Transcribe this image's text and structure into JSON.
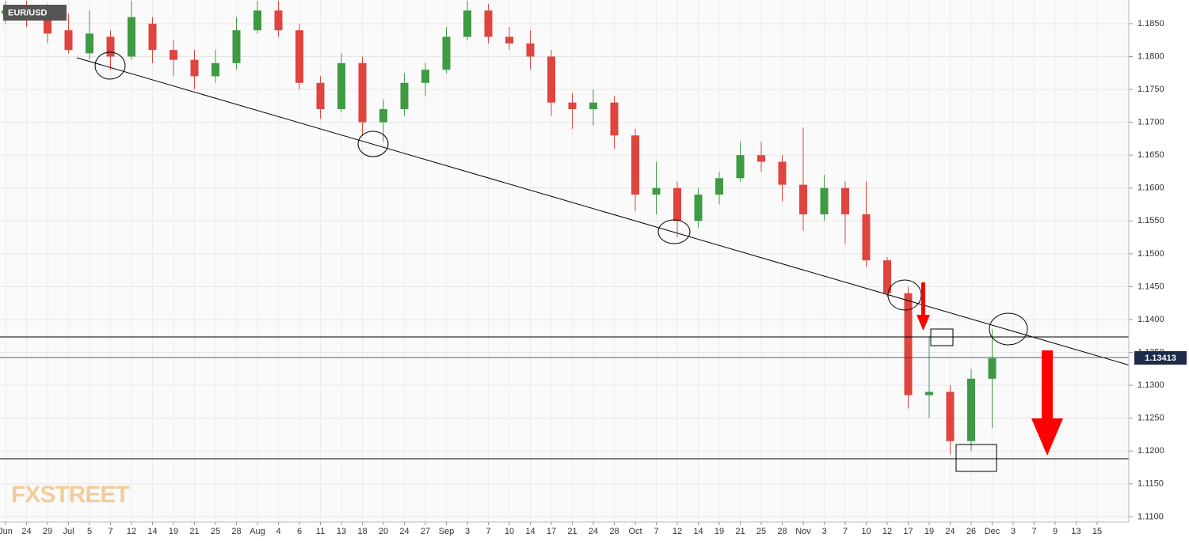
{
  "chart_data": {
    "type": "candlestick",
    "title": "EUR/USD",
    "watermark": "FXSTREET",
    "last_price_label": "1.13413",
    "categories": [
      "Jun",
      "24",
      "29",
      "Jul",
      "5",
      "7",
      "12",
      "14",
      "19",
      "21",
      "25",
      "28",
      "Aug",
      "4",
      "6",
      "11",
      "13",
      "18",
      "20",
      "24",
      "27",
      "Sep",
      "3",
      "7",
      "10",
      "14",
      "17",
      "21",
      "24",
      "28",
      "Oct",
      "7",
      "12",
      "14",
      "19",
      "21",
      "25",
      "28",
      "Nov",
      "3",
      "7",
      "10",
      "12",
      "17",
      "19",
      "24",
      "26",
      "Dec",
      "3",
      "7",
      "9",
      "13",
      "15"
    ],
    "series": [
      {
        "up_color": "#3f9a44",
        "down_color": "#e0443e",
        "open": [
          1.1865,
          1.187,
          1.1862,
          1.184,
          1.1805,
          1.183,
          1.18,
          1.185,
          1.181,
          1.1795,
          1.177,
          1.179,
          1.184,
          1.187,
          1.184,
          1.176,
          1.172,
          1.179,
          1.17,
          1.172,
          1.176,
          1.178,
          1.183,
          1.187,
          1.183,
          1.182,
          1.18,
          1.173,
          1.172,
          1.173,
          1.168,
          1.159,
          1.16,
          1.155,
          1.159,
          1.1615,
          1.165,
          1.164,
          1.1605,
          1.156,
          1.16,
          1.156,
          1.149,
          1.144,
          1.1285,
          1.129,
          1.1215,
          1.131,
          null,
          null,
          null,
          null,
          null
        ],
        "high": [
          1.1885,
          1.1885,
          1.188,
          1.1865,
          1.187,
          1.184,
          1.1885,
          1.186,
          1.1825,
          1.181,
          1.181,
          1.186,
          1.1885,
          1.1885,
          1.185,
          1.177,
          1.1805,
          1.18,
          1.1735,
          1.1775,
          1.179,
          1.1845,
          1.1885,
          1.188,
          1.1845,
          1.184,
          1.181,
          1.1745,
          1.175,
          1.174,
          1.169,
          1.164,
          1.161,
          1.16,
          1.1625,
          1.167,
          1.167,
          1.165,
          1.1692,
          1.162,
          1.161,
          1.161,
          1.1495,
          1.145,
          1.1375,
          1.13,
          1.1325,
          1.1385,
          null,
          null,
          null,
          null,
          null
        ],
        "low": [
          1.185,
          1.1845,
          1.182,
          1.1805,
          1.1795,
          1.178,
          1.1795,
          1.179,
          1.177,
          1.175,
          1.176,
          1.178,
          1.1835,
          1.183,
          1.175,
          1.1705,
          1.1715,
          1.168,
          1.167,
          1.171,
          1.174,
          1.1775,
          1.1825,
          1.182,
          1.181,
          1.178,
          1.171,
          1.169,
          1.1695,
          1.166,
          1.1565,
          1.156,
          1.1525,
          1.154,
          1.1575,
          1.161,
          1.1625,
          1.158,
          1.1535,
          1.155,
          1.1515,
          1.148,
          1.1435,
          1.1265,
          1.125,
          1.1195,
          1.12,
          1.1235,
          null,
          null,
          null,
          null,
          null
        ],
        "close": [
          1.187,
          1.186,
          1.1835,
          1.181,
          1.1835,
          1.18,
          1.186,
          1.181,
          1.1795,
          1.177,
          1.179,
          1.184,
          1.187,
          1.184,
          1.176,
          1.172,
          1.179,
          1.17,
          1.172,
          1.176,
          1.178,
          1.183,
          1.187,
          1.183,
          1.182,
          1.18,
          1.173,
          1.172,
          1.173,
          1.168,
          1.159,
          1.16,
          1.155,
          1.159,
          1.1615,
          1.165,
          1.164,
          1.1605,
          1.156,
          1.16,
          1.156,
          1.149,
          1.144,
          1.1285,
          1.129,
          1.1215,
          1.131,
          1.1341,
          null,
          null,
          null,
          null,
          null
        ]
      }
    ],
    "ylim": [
      1.1092,
      1.1886
    ],
    "yticks": [
      {
        "value": 1.11,
        "label": "1.1100"
      },
      {
        "value": 1.115,
        "label": "1.1150"
      },
      {
        "value": 1.12,
        "label": "1.1200"
      },
      {
        "value": 1.125,
        "label": "1.1250"
      },
      {
        "value": 1.13,
        "label": "1.1300"
      },
      {
        "value": 1.135,
        "label": "1.1350"
      },
      {
        "value": 1.14,
        "label": "1.1400"
      },
      {
        "value": 1.145,
        "label": "1.1450"
      },
      {
        "value": 1.15,
        "label": "1.1500"
      },
      {
        "value": 1.155,
        "label": "1.1550"
      },
      {
        "value": 1.16,
        "label": "1.1600"
      },
      {
        "value": 1.165,
        "label": "1.1650"
      },
      {
        "value": 1.17,
        "label": "1.1700"
      },
      {
        "value": 1.175,
        "label": "1.1750"
      },
      {
        "value": 1.18,
        "label": "1.1800"
      },
      {
        "value": 1.185,
        "label": "1.1850"
      }
    ],
    "grid": true
  }
}
